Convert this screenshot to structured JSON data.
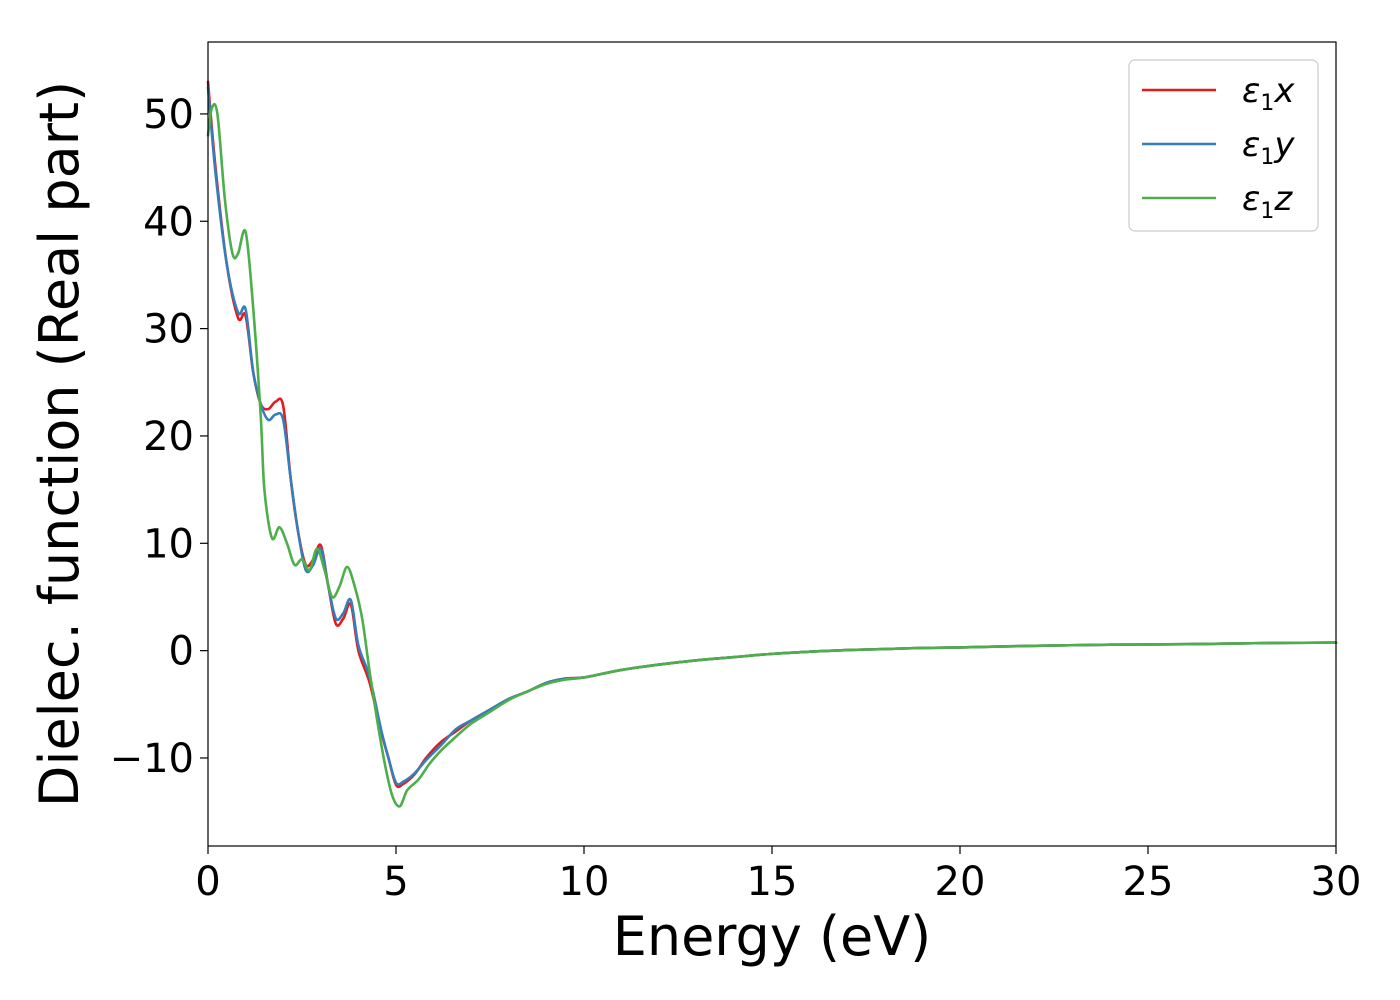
{
  "chart_data": {
    "type": "line",
    "xlabel": "Energy (eV)",
    "ylabel": "Dielec. function (Real part)",
    "xlim": [
      0,
      30
    ],
    "ylim": [
      -18.2,
      56.7
    ],
    "xticks": [
      0,
      5,
      10,
      15,
      20,
      25,
      30
    ],
    "xtick_labels": [
      "0",
      "5",
      "10",
      "15",
      "20",
      "25",
      "30"
    ],
    "yticks": [
      -10,
      0,
      10,
      20,
      30,
      40,
      50
    ],
    "ytick_labels": [
      "−10",
      "0",
      "10",
      "20",
      "30",
      "40",
      "50"
    ],
    "grid": false,
    "legend_position": "top-right",
    "series": [
      {
        "name": "ε1x",
        "legend_main": "ε",
        "legend_sub": "1",
        "legend_var": "x",
        "color": "#e41a1c",
        "x": [
          0,
          0.2,
          0.5,
          0.8,
          1.0,
          1.2,
          1.4,
          1.6,
          1.8,
          2.0,
          2.2,
          2.4,
          2.6,
          2.8,
          3.0,
          3.2,
          3.4,
          3.6,
          3.8,
          4.0,
          4.3,
          4.6,
          4.8,
          5.0,
          5.2,
          5.5,
          5.8,
          6.2,
          6.6,
          7.0,
          7.5,
          8.0,
          8.5,
          9.0,
          9.5,
          10.0,
          11.0,
          12.0,
          13.0,
          14.0,
          15.0,
          16.0,
          17.0,
          18.0,
          19.0,
          20.0,
          22.0,
          24.0,
          26.0,
          28.0,
          30.0
        ],
        "y": [
          53,
          45,
          36,
          31,
          31.2,
          26,
          23,
          22.5,
          23.2,
          22.8,
          16,
          11,
          8,
          8.5,
          9.8,
          6,
          2.5,
          3,
          4.3,
          0,
          -3,
          -7.5,
          -10,
          -12.5,
          -12.4,
          -11.5,
          -10,
          -8.5,
          -7.5,
          -6.5,
          -5.5,
          -4.5,
          -3.8,
          -3.0,
          -2.6,
          -2.5,
          -1.8,
          -1.3,
          -0.9,
          -0.6,
          -0.3,
          -0.1,
          0.05,
          0.15,
          0.25,
          0.3,
          0.45,
          0.55,
          0.6,
          0.7,
          0.75
        ]
      },
      {
        "name": "ε1y",
        "legend_main": "ε",
        "legend_sub": "1",
        "legend_var": "y",
        "color": "#377eb8",
        "x": [
          0,
          0.2,
          0.5,
          0.8,
          1.0,
          1.2,
          1.4,
          1.6,
          1.8,
          2.0,
          2.2,
          2.4,
          2.6,
          2.8,
          3.0,
          3.2,
          3.4,
          3.6,
          3.8,
          4.0,
          4.3,
          4.6,
          4.8,
          5.0,
          5.2,
          5.5,
          5.8,
          6.2,
          6.6,
          7.0,
          7.5,
          8.0,
          8.5,
          9.0,
          9.5,
          10.0,
          11.0,
          12.0,
          13.0,
          14.0,
          15.0,
          16.0,
          17.0,
          18.0,
          19.0,
          20.0,
          22.0,
          24.0,
          26.0,
          28.0,
          30.0
        ],
        "y": [
          52.5,
          44.5,
          36,
          31.5,
          31.8,
          26,
          23,
          21.5,
          22,
          21.5,
          16,
          11,
          7.5,
          8,
          9.5,
          6,
          3,
          3.5,
          4.7,
          0.5,
          -2.5,
          -7.3,
          -10,
          -12.3,
          -12.2,
          -11.4,
          -10.2,
          -8.8,
          -7.3,
          -6.5,
          -5.5,
          -4.5,
          -3.8,
          -3.0,
          -2.6,
          -2.5,
          -1.8,
          -1.3,
          -0.9,
          -0.6,
          -0.3,
          -0.1,
          0.05,
          0.15,
          0.25,
          0.3,
          0.45,
          0.55,
          0.6,
          0.7,
          0.75
        ]
      },
      {
        "name": "ε1z",
        "legend_main": "ε",
        "legend_sub": "1",
        "legend_var": "z",
        "color": "#4daf4a",
        "x": [
          0,
          0.1,
          0.25,
          0.45,
          0.65,
          0.8,
          1.0,
          1.2,
          1.4,
          1.5,
          1.7,
          1.9,
          2.1,
          2.3,
          2.5,
          2.7,
          2.9,
          3.1,
          3.3,
          3.5,
          3.7,
          3.9,
          4.1,
          4.3,
          4.5,
          4.7,
          4.9,
          5.1,
          5.3,
          5.6,
          5.9,
          6.2,
          6.6,
          7.0,
          7.5,
          8.0,
          8.5,
          9.0,
          9.5,
          10.0,
          11.0,
          12.0,
          13.0,
          14.0,
          15.0,
          16.0,
          17.0,
          18.0,
          19.0,
          20.0,
          22.0,
          24.0,
          26.0,
          28.0,
          30.0
        ],
        "y": [
          48,
          50.5,
          50,
          42,
          37,
          37,
          39,
          32,
          22,
          15,
          10.5,
          11.5,
          10,
          8,
          8.5,
          7.5,
          9.5,
          7.5,
          5,
          6,
          7.8,
          6,
          3,
          -2,
          -6.5,
          -10.5,
          -13.5,
          -14.5,
          -13,
          -12,
          -10.5,
          -9.3,
          -8,
          -6.8,
          -5.7,
          -4.6,
          -3.8,
          -3.1,
          -2.7,
          -2.5,
          -1.8,
          -1.3,
          -0.9,
          -0.6,
          -0.3,
          -0.1,
          0.05,
          0.15,
          0.25,
          0.3,
          0.45,
          0.55,
          0.6,
          0.7,
          0.75
        ]
      }
    ]
  }
}
